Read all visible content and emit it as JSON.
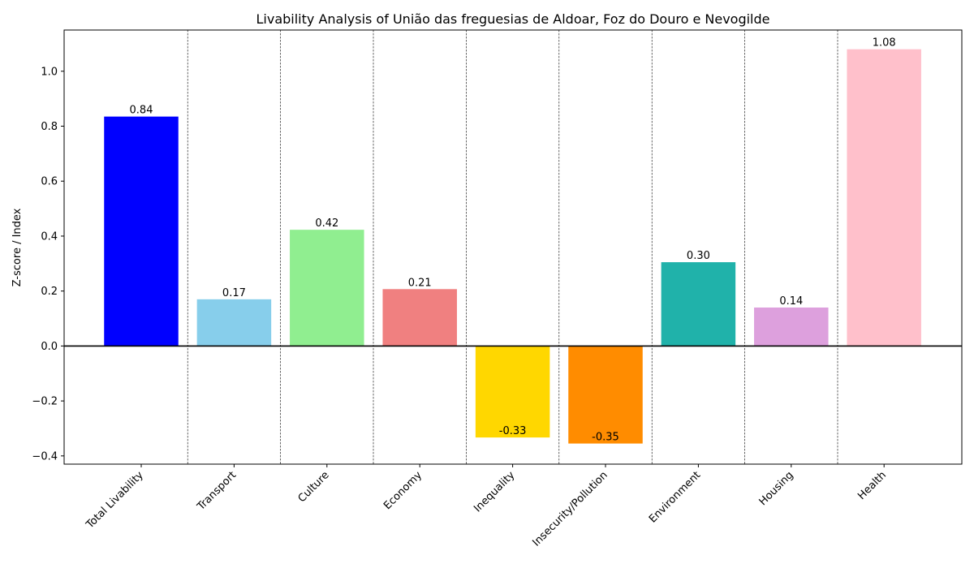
{
  "chart_data": {
    "type": "bar",
    "title": "Livability Analysis of União das freguesias de Aldoar, Foz do Douro e Nevogilde",
    "xlabel": "",
    "ylabel": "Z-score / Index",
    "ylim": [
      -0.43,
      1.15
    ],
    "yticks": [
      -0.4,
      -0.2,
      0.0,
      0.2,
      0.4,
      0.6,
      0.8,
      1.0
    ],
    "ytick_labels": [
      "−0.4",
      "−0.2",
      "0.0",
      "0.2",
      "0.4",
      "0.6",
      "0.8",
      "1.0"
    ],
    "categories": [
      "Total Livability",
      "Transport",
      "Culture",
      "Economy",
      "Inequality",
      "Insecurity/Pollution",
      "Environment",
      "Housing",
      "Health"
    ],
    "values": [
      0.835,
      0.17,
      0.423,
      0.207,
      -0.333,
      -0.355,
      0.305,
      0.14,
      1.08
    ],
    "value_labels": [
      "0.84",
      "0.17",
      "0.42",
      "0.21",
      "-0.33",
      "-0.35",
      "0.30",
      "0.14",
      "1.08"
    ],
    "colors": [
      "#0000ff",
      "#87ceeb",
      "#90ee90",
      "#f08080",
      "#ffd700",
      "#ff8c00",
      "#20b2aa",
      "#dda0dd",
      "#ffc0cb"
    ],
    "grid": false,
    "category_separators": true,
    "zero_line": true
  }
}
